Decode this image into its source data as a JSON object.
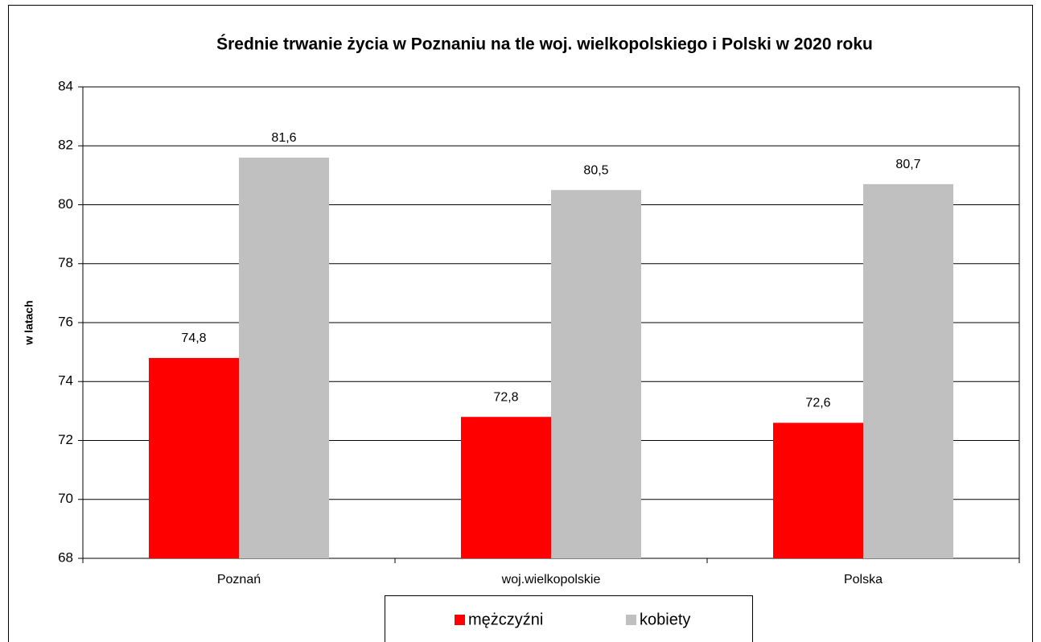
{
  "chart_data": {
    "type": "bar",
    "title": "Średnie trwanie życia w Poznaniu na tle woj. wielkopolskiego i Polski w 2020 roku",
    "y_label": "w latach",
    "categories": [
      "Poznań",
      "woj.wielkopolskie",
      "Polska"
    ],
    "series": [
      {
        "name": "mężczyźni",
        "color": "#ff0000",
        "values": [
          74.8,
          72.8,
          72.6
        ],
        "value_labels": [
          "74,8",
          "72,8",
          "72,6"
        ]
      },
      {
        "name": "kobiety",
        "color": "#c0c0c0",
        "values": [
          81.6,
          80.5,
          80.7
        ],
        "value_labels": [
          "81,6",
          "80,5",
          "80,7"
        ]
      }
    ],
    "ylim": [
      68,
      84
    ],
    "yticks": [
      68,
      70,
      72,
      74,
      76,
      78,
      80,
      82,
      84
    ],
    "grid": true,
    "legend": "bottom"
  }
}
